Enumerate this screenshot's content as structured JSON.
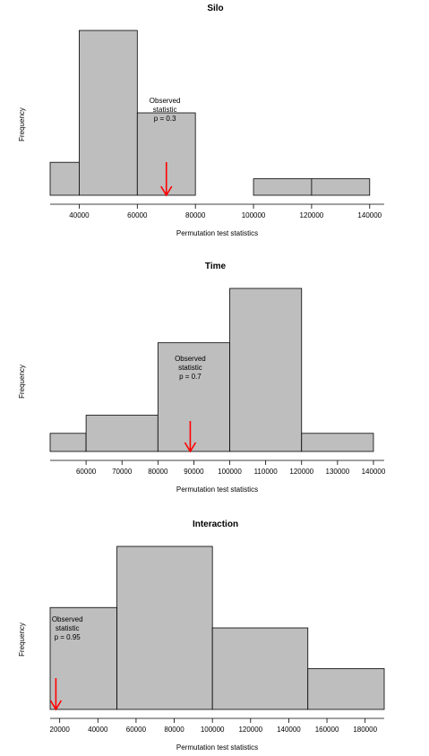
{
  "chart_data": [
    {
      "type": "bar",
      "title": "Silo",
      "xlabel": "Permutation test statistics",
      "ylabel": "Frequency",
      "xlim": [
        30000,
        145000
      ],
      "ylim": [
        0,
        10
      ],
      "xticks": [
        40000,
        60000,
        80000,
        100000,
        120000,
        140000
      ],
      "bins": [
        {
          "from": 30000,
          "to": 40000,
          "count": 2
        },
        {
          "from": 40000,
          "to": 60000,
          "count": 10
        },
        {
          "from": 60000,
          "to": 80000,
          "count": 5
        },
        {
          "from": 80000,
          "to": 100000,
          "count": 0
        },
        {
          "from": 100000,
          "to": 120000,
          "count": 1
        },
        {
          "from": 120000,
          "to": 140000,
          "count": 1
        }
      ],
      "observed": 70000,
      "annotation": [
        "Observed",
        "statistic",
        "p = 0.3"
      ],
      "annot_x": 69500,
      "annot_y": 5.6
    },
    {
      "type": "bar",
      "title": "Time",
      "xlabel": "Permutation test statistics",
      "ylabel": "Frequency",
      "xlim": [
        50000,
        143000
      ],
      "ylim": [
        0,
        9
      ],
      "xticks": [
        60000,
        70000,
        80000,
        90000,
        100000,
        110000,
        120000,
        130000,
        140000
      ],
      "bins": [
        {
          "from": 50000,
          "to": 60000,
          "count": 1
        },
        {
          "from": 60000,
          "to": 80000,
          "count": 2
        },
        {
          "from": 80000,
          "to": 100000,
          "count": 6
        },
        {
          "from": 100000,
          "to": 120000,
          "count": 9
        },
        {
          "from": 120000,
          "to": 140000,
          "count": 1
        }
      ],
      "observed": 89000,
      "annotation": [
        "Observed",
        "statistic",
        "p = 0.7"
      ],
      "annot_x": 89000,
      "annot_y": 5.0
    },
    {
      "type": "bar",
      "title": "Interaction",
      "xlabel": "Permutation test statistics",
      "ylabel": "Frequency",
      "xlim": [
        15000,
        190000
      ],
      "ylim": [
        0,
        8
      ],
      "xticks": [
        20000,
        40000,
        60000,
        80000,
        100000,
        120000,
        140000,
        160000,
        180000
      ],
      "bins": [
        {
          "from": 15000,
          "to": 50000,
          "count": 5
        },
        {
          "from": 50000,
          "to": 100000,
          "count": 8
        },
        {
          "from": 100000,
          "to": 150000,
          "count": 4
        },
        {
          "from": 150000,
          "to": 190000,
          "count": 2
        }
      ],
      "observed": 18000,
      "annotation": [
        "Observed",
        "statistic",
        "p = 0.95"
      ],
      "annot_x": 24000,
      "annot_y": 4.3
    }
  ]
}
